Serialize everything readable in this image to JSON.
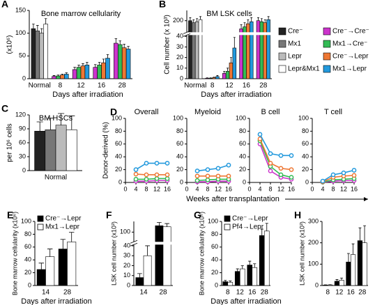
{
  "chart_data": [
    {
      "panel": "A",
      "type": "bar",
      "title": "Bone marrow cellularity",
      "ylabel": "(x10⁶)",
      "xlabel": "Days after irradiation",
      "categories": [
        "Normal",
        "8",
        "12",
        "16",
        "28"
      ],
      "ylim": [
        0,
        150
      ],
      "yticks": [
        0,
        50,
        100,
        150
      ],
      "series": [
        {
          "name": "Cre⁻",
          "color": "#222222",
          "values": [
            110,
            null,
            null,
            null,
            null
          ],
          "errors": [
            10,
            null,
            null,
            null,
            null
          ]
        },
        {
          "name": "Mx1",
          "color": "#777777",
          "values": [
            105,
            null,
            null,
            null,
            null
          ],
          "errors": [
            12,
            null,
            null,
            null,
            null
          ]
        },
        {
          "name": "Lepr",
          "color": "#bbbbbb",
          "values": [
            100,
            null,
            null,
            null,
            null
          ],
          "errors": [
            10,
            null,
            null,
            null,
            null
          ]
        },
        {
          "name": "Lepr&Mx1",
          "color": "#ffffff",
          "values": [
            120,
            null,
            null,
            null,
            null
          ],
          "errors": [
            12,
            null,
            null,
            null,
            null
          ]
        },
        {
          "name": "Cre⁻→Cre⁻",
          "color": "#cc33cc",
          "values": [
            null,
            5,
            20,
            25,
            78
          ],
          "errors": [
            null,
            2,
            5,
            6,
            10
          ]
        },
        {
          "name": "Mx1→Cre⁻",
          "color": "#33bb55",
          "values": [
            null,
            6,
            25,
            30,
            75
          ],
          "errors": [
            null,
            2,
            5,
            6,
            8
          ]
        },
        {
          "name": "Cre⁻→Lepr",
          "color": "#ee7733",
          "values": [
            null,
            8,
            28,
            35,
            68
          ],
          "errors": [
            null,
            2,
            5,
            8,
            8
          ]
        },
        {
          "name": "Mx1→Lepr",
          "color": "#2299dd",
          "values": [
            null,
            10,
            30,
            45,
            65
          ],
          "errors": [
            null,
            3,
            6,
            8,
            6
          ]
        }
      ]
    },
    {
      "panel": "B",
      "type": "bar",
      "title": "BM LSK cells",
      "ylabel": "Cell number (x 10³)",
      "xlabel": "Days after irradiation",
      "categories": [
        "Normal",
        "8",
        "12",
        "16",
        "28"
      ],
      "ylim": [
        0,
        250
      ],
      "break": [
        40,
        150
      ],
      "yticks": [
        0,
        10,
        20,
        30,
        40,
        200
      ],
      "legend": "right",
      "series": [
        {
          "name": "Cre⁻",
          "color": "#222222",
          "values": [
            200,
            null,
            null,
            null,
            null
          ],
          "errors": [
            15,
            null,
            null,
            null,
            null
          ]
        },
        {
          "name": "Mx1",
          "color": "#777777",
          "values": [
            190,
            null,
            null,
            null,
            null
          ],
          "errors": [
            15,
            null,
            null,
            null,
            null
          ]
        },
        {
          "name": "Lepr",
          "color": "#bbbbbb",
          "values": [
            195,
            null,
            null,
            null,
            null
          ],
          "errors": [
            15,
            null,
            null,
            null,
            null
          ]
        },
        {
          "name": "Lepr&Mx1",
          "color": "#ffffff",
          "values": [
            205,
            null,
            null,
            null,
            null
          ],
          "errors": [
            15,
            null,
            null,
            null,
            null
          ]
        },
        {
          "name": "Cre⁻→Cre⁻",
          "color": "#cc33cc",
          "values": [
            null,
            0.5,
            5,
            160,
            200
          ],
          "errors": [
            null,
            0.3,
            2,
            20,
            15
          ]
        },
        {
          "name": "Mx1→Cre⁻",
          "color": "#33bb55",
          "values": [
            null,
            0.5,
            7,
            170,
            195
          ],
          "errors": [
            null,
            0.3,
            3,
            20,
            15
          ]
        },
        {
          "name": "Cre⁻→Lepr",
          "color": "#ee7733",
          "values": [
            null,
            1,
            15,
            185,
            190
          ],
          "errors": [
            null,
            0.5,
            5,
            20,
            15
          ]
        },
        {
          "name": "Mx1→Lepr",
          "color": "#2299dd",
          "values": [
            null,
            2,
            29,
            195,
            205
          ],
          "errors": [
            null,
            1,
            10,
            20,
            15
          ]
        }
      ]
    },
    {
      "panel": "C",
      "type": "bar",
      "title": "BM HSCs",
      "ylabel": "per 10⁶ cells",
      "categories": [
        "Normal"
      ],
      "ylim": [
        0,
        120
      ],
      "yticks": [
        0,
        30,
        60,
        90,
        120
      ],
      "series": [
        {
          "color": "#222222",
          "values": [
            85
          ],
          "errors": [
            20
          ]
        },
        {
          "color": "#777777",
          "values": [
            88
          ],
          "errors": [
            25
          ]
        },
        {
          "color": "#bbbbbb",
          "values": [
            98
          ],
          "errors": [
            25
          ]
        },
        {
          "color": "#ffffff",
          "values": [
            88
          ],
          "errors": [
            30
          ]
        }
      ]
    },
    {
      "panel": "D",
      "type": "line",
      "title": "Overall",
      "ylabel": "Donor-derived (%)",
      "xlabel": "Weeks after transplantation",
      "x": [
        4,
        8,
        12,
        16
      ],
      "xlim": [
        0,
        16
      ],
      "xticks": [
        0,
        4,
        8,
        12,
        16
      ],
      "ylim": [
        0,
        100
      ],
      "yticks": [
        0,
        20,
        40,
        60,
        80,
        100
      ],
      "series": [
        {
          "color": "#cc33cc",
          "values": [
            2,
            2,
            3,
            3
          ]
        },
        {
          "color": "#33bb55",
          "values": [
            5,
            5,
            6,
            6
          ]
        },
        {
          "color": "#ee7733",
          "values": [
            13,
            12,
            12,
            12
          ]
        },
        {
          "color": "#2299dd",
          "values": [
            20,
            30,
            30,
            30
          ]
        }
      ]
    },
    {
      "type": "line",
      "title": "Myeloid",
      "x": [
        4,
        8,
        12,
        16
      ],
      "xlim": [
        0,
        16
      ],
      "xticks": [
        0,
        4,
        8,
        12,
        16
      ],
      "ylim": [
        0,
        100
      ],
      "yticks": [
        0,
        20,
        40,
        60,
        80,
        100
      ],
      "series": [
        {
          "color": "#cc33cc",
          "values": [
            1,
            1,
            2,
            2
          ]
        },
        {
          "color": "#33bb55",
          "values": [
            3,
            4,
            5,
            5
          ]
        },
        {
          "color": "#ee7733",
          "values": [
            10,
            10,
            10,
            10
          ]
        },
        {
          "color": "#2299dd",
          "values": [
            18,
            20,
            22,
            27
          ]
        }
      ]
    },
    {
      "type": "line",
      "title": "B cell",
      "x": [
        4,
        8,
        12,
        16
      ],
      "xlim": [
        0,
        16
      ],
      "xticks": [
        0,
        4,
        8,
        12,
        16
      ],
      "ylim": [
        0,
        100
      ],
      "yticks": [
        0,
        20,
        40,
        60,
        80,
        100
      ],
      "series": [
        {
          "color": "#cc33cc",
          "values": [
            60,
            18,
            8,
            5
          ]
        },
        {
          "color": "#33bb55",
          "values": [
            65,
            25,
            12,
            8
          ]
        },
        {
          "color": "#ee7733",
          "values": [
            68,
            30,
            22,
            20
          ]
        },
        {
          "color": "#2299dd",
          "values": [
            75,
            45,
            42,
            42
          ]
        }
      ]
    },
    {
      "type": "line",
      "title": "T cell",
      "x": [
        4,
        8,
        12,
        16
      ],
      "xlim": [
        0,
        16
      ],
      "xticks": [
        0,
        4,
        8,
        12,
        16
      ],
      "ylim": [
        0,
        100
      ],
      "yticks": [
        0,
        20,
        40,
        60,
        80,
        100
      ],
      "series": [
        {
          "color": "#cc33cc",
          "values": [
            0.5,
            2,
            3,
            3
          ]
        },
        {
          "color": "#33bb55",
          "values": [
            0.5,
            4,
            5,
            6
          ]
        },
        {
          "color": "#ee7733",
          "values": [
            1,
            8,
            10,
            11
          ]
        },
        {
          "color": "#2299dd",
          "values": [
            2,
            12,
            15,
            19
          ]
        }
      ]
    },
    {
      "panel": "E",
      "type": "bar",
      "ylabel": "Bone marrow cellularity (x10⁶)",
      "xlabel": "Days after irradiation",
      "categories": [
        "14",
        "28"
      ],
      "ylim": [
        0,
        100
      ],
      "yticks": [
        0,
        20,
        40,
        60,
        80,
        100
      ],
      "legend": "top-left",
      "series": [
        {
          "name": "Cre⁻→Lepr",
          "color": "#000000",
          "values": [
            25,
            57
          ],
          "errors": [
            10,
            15
          ]
        },
        {
          "name": "Mx1→Lepr",
          "color": "#ffffff",
          "values": [
            45,
            68
          ],
          "errors": [
            12,
            15
          ]
        }
      ]
    },
    {
      "panel": "F",
      "type": "bar",
      "ylabel": "LSK cell number (x10³)",
      "categories": [
        "14",
        "28"
      ],
      "ylim": [
        0,
        150
      ],
      "break": [
        40,
        60
      ],
      "yticks": [
        0,
        10,
        20,
        30,
        40,
        100
      ],
      "series": [
        {
          "color": "#000000",
          "values": [
            8,
            130
          ],
          "errors": [
            4,
            15
          ]
        },
        {
          "color": "#ffffff",
          "values": [
            30,
            125
          ],
          "errors": [
            12,
            15
          ]
        }
      ]
    },
    {
      "panel": "G",
      "type": "bar",
      "ylabel": "Bone marrow cellularity (x10⁶)",
      "xlabel": "Days after irradiation",
      "categories": [
        "8",
        "12",
        "16",
        "28"
      ],
      "ylim": [
        0,
        100
      ],
      "yticks": [
        0,
        20,
        40,
        60,
        80,
        100
      ],
      "legend": "top-left",
      "series": [
        {
          "name": "Cre⁻→Lepr",
          "color": "#000000",
          "values": [
            6,
            22,
            32,
            78
          ],
          "errors": [
            2,
            4,
            6,
            10
          ]
        },
        {
          "name": "Pf4→Lepr",
          "color": "#ffffff",
          "values": [
            5,
            26,
            28,
            85
          ],
          "errors": [
            2,
            5,
            6,
            12
          ]
        }
      ]
    },
    {
      "panel": "H",
      "type": "bar",
      "ylabel": "LSK cell number (x10³)",
      "categories": [
        "8",
        "12",
        "16",
        "28"
      ],
      "ylim": [
        0,
        300
      ],
      "yticks": [
        0,
        100,
        200,
        300
      ],
      "series": [
        {
          "color": "#000000",
          "values": [
            2,
            20,
            110,
            210
          ],
          "errors": [
            1,
            8,
            40,
            60
          ]
        },
        {
          "color": "#ffffff",
          "values": [
            3,
            25,
            145,
            200
          ],
          "errors": [
            1,
            10,
            50,
            80
          ]
        }
      ]
    }
  ]
}
